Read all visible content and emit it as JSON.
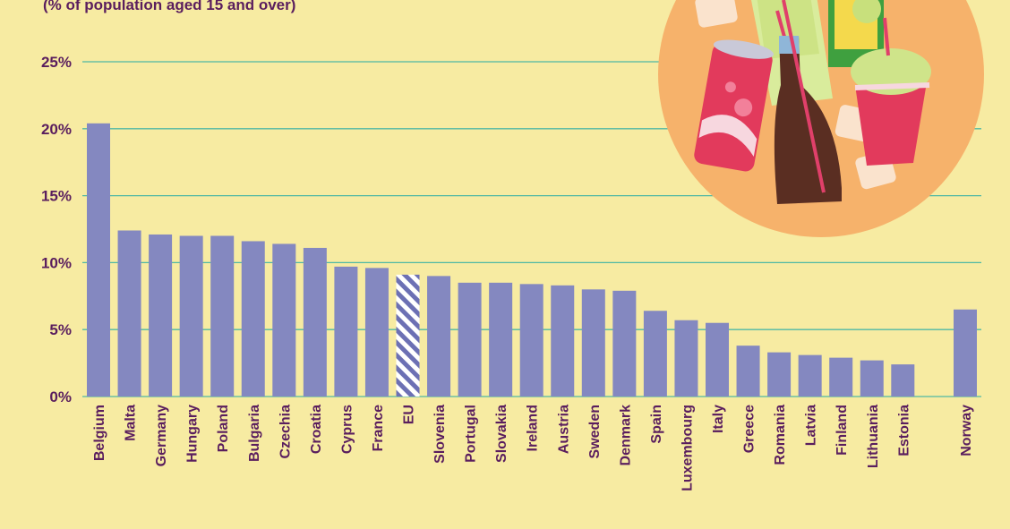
{
  "chart_data": {
    "type": "bar",
    "subtitle": "(% of population aged 15 and over)",
    "categories": [
      "Belgium",
      "Malta",
      "Germany",
      "Hungary",
      "Poland",
      "Bulgaria",
      "Czechia",
      "Croatia",
      "Cyprus",
      "France",
      "EU",
      "Slovenia",
      "Portugal",
      "Slovakia",
      "Ireland",
      "Austria",
      "Sweden",
      "Denmark",
      "Spain",
      "Luxembourg",
      "Italy",
      "Greece",
      "Romania",
      "Latvia",
      "Finland",
      "Lithuania",
      "Estonia",
      "Norway"
    ],
    "values": [
      20.4,
      12.4,
      12.1,
      12.0,
      12.0,
      11.6,
      11.4,
      11.1,
      9.7,
      9.6,
      9.1,
      9.0,
      8.5,
      8.5,
      8.4,
      8.3,
      8.0,
      7.9,
      6.4,
      5.7,
      5.5,
      3.8,
      3.3,
      3.1,
      2.9,
      2.7,
      2.4,
      6.5
    ],
    "highlight": "EU",
    "ylim": [
      0,
      25
    ],
    "yticks": [
      "0%",
      "5%",
      "10%",
      "15%",
      "20%",
      "25%"
    ],
    "ytick_values": [
      0,
      5,
      10,
      15,
      20,
      25
    ],
    "grid": true,
    "colors": {
      "bar": "#8488c0",
      "highlight_stripe": "#6c70b4",
      "grid": "#4fb8a4",
      "text": "#5a1e5e",
      "background": "#f7eba2",
      "illustration_circle": "#f6b26b"
    },
    "illustration": "soft-drinks-illustration"
  }
}
